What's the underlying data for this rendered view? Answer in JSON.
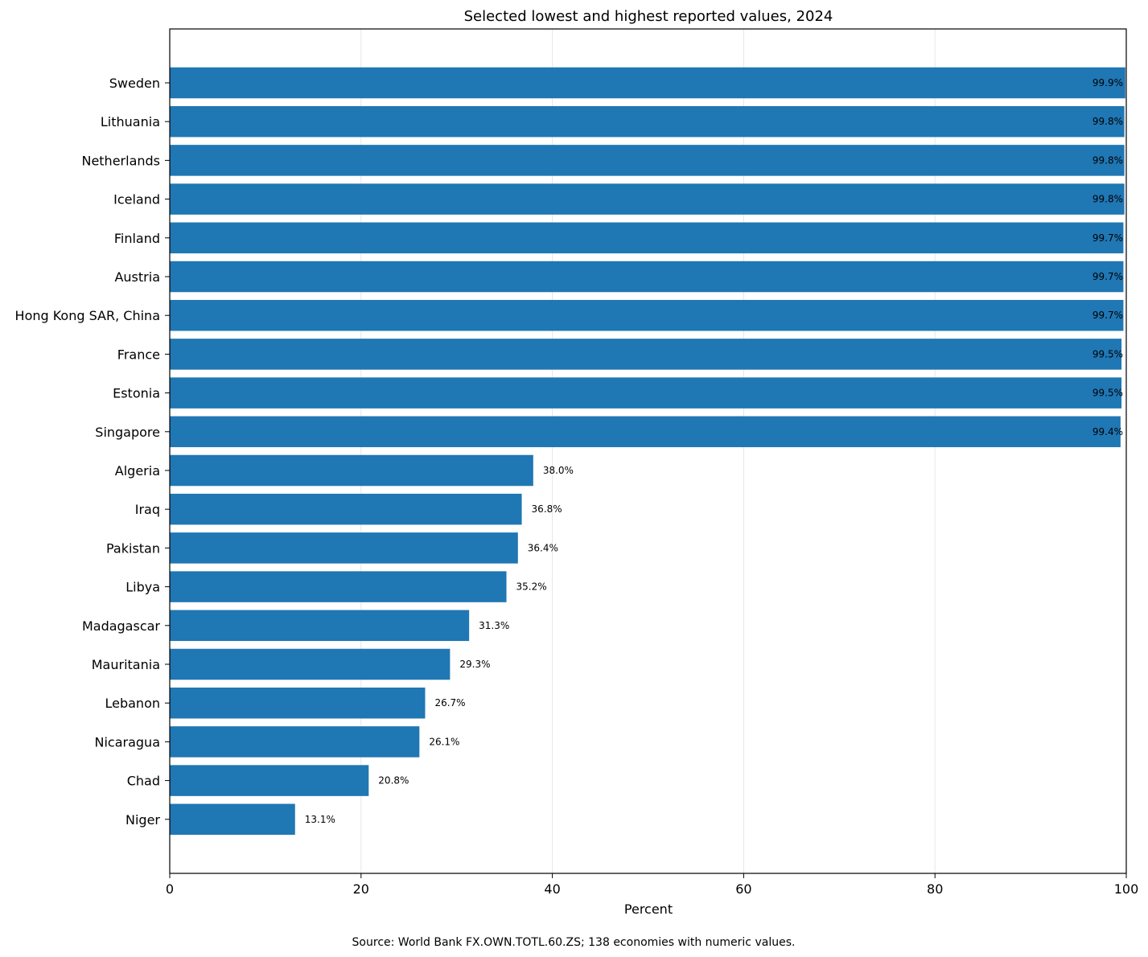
{
  "chart_data": {
    "type": "bar",
    "orientation": "horizontal",
    "title": "Selected lowest and highest reported values, 2024",
    "xlabel": "Percent",
    "ylabel": "",
    "xlim": [
      0,
      100
    ],
    "xticks": [
      0,
      20,
      40,
      60,
      80,
      100
    ],
    "grid": "vertical, light",
    "bar_color": "#1f77b4",
    "categories": [
      "Sweden",
      "Lithuania",
      "Netherlands",
      "Iceland",
      "Finland",
      "Austria",
      "Hong Kong SAR, China",
      "France",
      "Estonia",
      "Singapore",
      "Algeria",
      "Iraq",
      "Pakistan",
      "Libya",
      "Madagascar",
      "Mauritania",
      "Lebanon",
      "Nicaragua",
      "Chad",
      "Niger"
    ],
    "values": [
      99.9,
      99.8,
      99.8,
      99.8,
      99.7,
      99.7,
      99.7,
      99.5,
      99.5,
      99.4,
      38.0,
      36.8,
      36.4,
      35.2,
      31.3,
      29.3,
      26.7,
      26.1,
      20.8,
      13.1
    ],
    "value_labels": [
      "99.9%",
      "99.8%",
      "99.8%",
      "99.8%",
      "99.7%",
      "99.7%",
      "99.7%",
      "99.5%",
      "99.5%",
      "99.4%",
      "38.0%",
      "36.8%",
      "36.4%",
      "35.2%",
      "31.3%",
      "29.3%",
      "26.7%",
      "26.1%",
      "20.8%",
      "13.1%"
    ],
    "source_note": "Source: World Bank FX.OWN.TOTL.60.ZS; 138 economies with numeric values."
  }
}
